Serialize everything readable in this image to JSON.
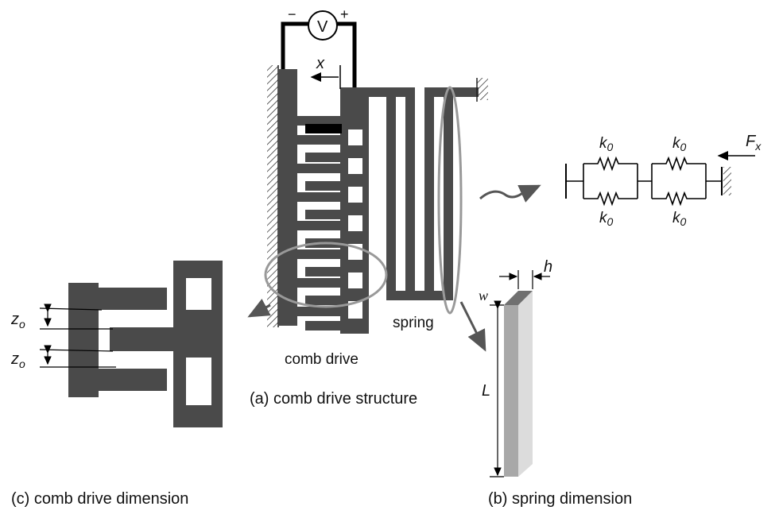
{
  "labels": {
    "voltage_source": "V",
    "minus": "−",
    "plus": "+",
    "displacement": "x",
    "spring": "spring",
    "comb_drive": "comb drive",
    "caption_a": "(a) comb drive structure",
    "caption_b": "(b) spring dimension",
    "caption_c": "(c) comb drive dimension",
    "k0": "k",
    "k0_sub": "0",
    "force": "F",
    "force_sub": "x",
    "z0": "z",
    "z0_sub": "o",
    "height": "h",
    "width": "w",
    "length": "L"
  },
  "colors": {
    "structure": "#4a4a4a",
    "outline": "#999999",
    "wire": "#000000",
    "spring_front": "#dcdcdc",
    "spring_side": "#a8a8a8",
    "spring_top": "#707070"
  }
}
